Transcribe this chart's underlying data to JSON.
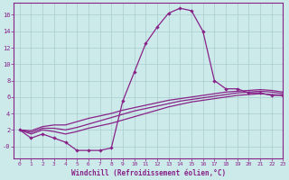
{
  "x": [
    0,
    1,
    2,
    3,
    4,
    5,
    6,
    7,
    8,
    9,
    10,
    11,
    12,
    13,
    14,
    15,
    16,
    17,
    18,
    19,
    20,
    21,
    22,
    23
  ],
  "line1": [
    2,
    1,
    1.5,
    1,
    0.5,
    -0.5,
    -0.5,
    -0.5,
    -0.2,
    5.5,
    9,
    12.5,
    14.5,
    16.2,
    16.8,
    16.5,
    14,
    8,
    7,
    7,
    6.5,
    6.5,
    6.2,
    6.2
  ],
  "line2": [
    2,
    1.5,
    2.0,
    1.8,
    1.5,
    1.8,
    2.2,
    2.5,
    2.8,
    3.2,
    3.6,
    4.0,
    4.4,
    4.8,
    5.1,
    5.4,
    5.6,
    5.8,
    6.0,
    6.2,
    6.3,
    6.4,
    6.3,
    6.2
  ],
  "line3": [
    2,
    1.7,
    2.2,
    2.2,
    2.0,
    2.3,
    2.7,
    3.1,
    3.5,
    3.9,
    4.3,
    4.6,
    4.9,
    5.2,
    5.5,
    5.7,
    5.9,
    6.1,
    6.3,
    6.5,
    6.6,
    6.7,
    6.6,
    6.4
  ],
  "line4": [
    2,
    1.9,
    2.4,
    2.6,
    2.6,
    3.0,
    3.4,
    3.7,
    4.0,
    4.4,
    4.7,
    5.0,
    5.3,
    5.6,
    5.8,
    6.0,
    6.2,
    6.4,
    6.6,
    6.7,
    6.8,
    6.9,
    6.8,
    6.6
  ],
  "color": "#882288",
  "bg_color": "#cceaea",
  "grid_color": "#aacccc",
  "xlabel": "Windchill (Refroidissement éolien,°C)",
  "ylim": [
    -1.5,
    17.5
  ],
  "xlim": [
    -0.5,
    23
  ],
  "ytick_vals": [
    0,
    2,
    4,
    6,
    8,
    10,
    12,
    14,
    16
  ],
  "ytick_labels": [
    "-0",
    "2",
    "4",
    "6",
    "8",
    "10",
    "12",
    "14",
    "16"
  ],
  "xticks": [
    0,
    1,
    2,
    3,
    4,
    5,
    6,
    7,
    8,
    9,
    10,
    11,
    12,
    13,
    14,
    15,
    16,
    17,
    18,
    19,
    20,
    21,
    22,
    23
  ]
}
